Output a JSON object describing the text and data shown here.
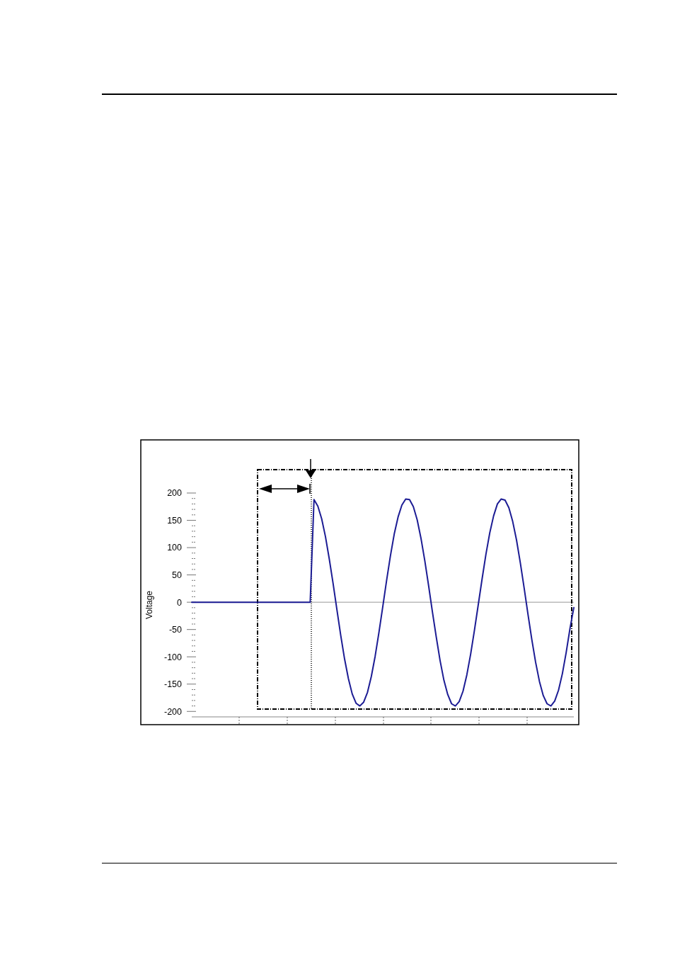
{
  "chart_data": {
    "type": "line",
    "ylabel": "Voltage",
    "categories": [
      null,
      null,
      null,
      null,
      null,
      null,
      null,
      null,
      null,
      null,
      null,
      null,
      null,
      null,
      null,
      null,
      null,
      null,
      null,
      null,
      null,
      null,
      null,
      null,
      null,
      null,
      null,
      null,
      null,
      null,
      null,
      null,
      null,
      null,
      null,
      null,
      null,
      null,
      null,
      null,
      null,
      null,
      null,
      null,
      null,
      null,
      null,
      null,
      null,
      null,
      null,
      null,
      null,
      null,
      null,
      null,
      null,
      null,
      null,
      null,
      null,
      null,
      null,
      null,
      null,
      null,
      null,
      null,
      null,
      null,
      null,
      null,
      null,
      null,
      null,
      null,
      null,
      null,
      null,
      null,
      null,
      null,
      null,
      null,
      null,
      null,
      null,
      null,
      null,
      null,
      null,
      null,
      null,
      null,
      null,
      null,
      null,
      null,
      null,
      null,
      null
    ],
    "series": [
      {
        "color": "#1c1c94",
        "values": [
          0,
          0,
          0,
          0,
          0,
          0,
          0,
          0,
          0,
          0,
          0,
          0,
          0,
          0,
          0,
          0,
          0,
          0,
          0,
          0,
          0,
          0,
          0,
          0,
          0,
          0,
          0,
          0,
          0,
          0,
          0,
          0,
          188,
          176,
          153,
          120,
          79,
          34,
          -14,
          -61,
          -104,
          -140,
          -168,
          -185,
          -190,
          -183,
          -165,
          -136,
          -99,
          -55,
          -8,
          40,
          85,
          125,
          156,
          178,
          189,
          188,
          175,
          151,
          117,
          76,
          30,
          -18,
          -64,
          -107,
          -143,
          -169,
          -186,
          -190,
          -182,
          -163,
          -133,
          -95,
          -51,
          -4,
          43,
          88,
          127,
          158,
          180,
          189,
          187,
          173,
          148,
          114,
          72,
          26,
          -22,
          -68,
          -110,
          -145,
          -171,
          -186,
          -190,
          -181,
          -161,
          -131,
          -92,
          -48,
          -10
        ]
      }
    ],
    "ylim": [
      -210,
      200
    ],
    "yticks": [
      -200,
      -150,
      -100,
      -50,
      0,
      50,
      100,
      150,
      200
    ],
    "tick_labels": "y",
    "ref_lines": [
      {
        "axis": "y",
        "value": 0,
        "color": "#999999"
      }
    ]
  }
}
